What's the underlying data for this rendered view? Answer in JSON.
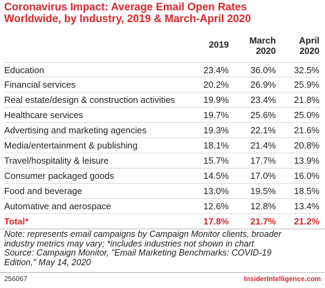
{
  "title": {
    "line1": "Coronavirus Impact: Average Email Open Rates",
    "line2": "Worldwide, by Industry, 2019 & March-April 2020"
  },
  "columns": [
    {
      "line1": "2019",
      "line2": ""
    },
    {
      "line1": "March",
      "line2": "2020"
    },
    {
      "line1": "April",
      "line2": "2020"
    }
  ],
  "rows": [
    {
      "label": "Education",
      "v2019": "23.4%",
      "march": "36.0%",
      "april": "32.5%"
    },
    {
      "label": "Financial services",
      "v2019": "20.2%",
      "march": "26.9%",
      "april": "25.9%"
    },
    {
      "label": "Real estate/design & construction activities",
      "v2019": "19.9%",
      "march": "23.4%",
      "april": "21.8%"
    },
    {
      "label": "Healthcare services",
      "v2019": "19.7%",
      "march": "25.6%",
      "april": "25.0%"
    },
    {
      "label": "Advertising and marketing agencies",
      "v2019": "19.3%",
      "march": "22.1%",
      "april": "21.6%"
    },
    {
      "label": "Media/entertainment & publishing",
      "v2019": "18.1%",
      "march": "21.4%",
      "april": "20.8%"
    },
    {
      "label": "Travel/hospitality & leisure",
      "v2019": "15.7%",
      "march": "17.7%",
      "april": "13.9%"
    },
    {
      "label": "Consumer packaged goods",
      "v2019": "14.5%",
      "march": "17.0%",
      "april": "16.0%"
    },
    {
      "label": "Food and beverage",
      "v2019": "13.0%",
      "march": "19.5%",
      "april": "18.5%"
    },
    {
      "label": "Automative and aerospace",
      "v2019": "12.6%",
      "march": "12.8%",
      "april": "13.4%"
    }
  ],
  "total": {
    "label": "Total*",
    "v2019": "17.8%",
    "march": "21.7%",
    "april": "21.2%"
  },
  "note": {
    "line1": "Note: represents email campaigns by Campaign Monitor clients, broader",
    "line2": "industry metrics may vary; *includes industries not shown in chart",
    "line3": "Source: Campaign Monitor, \"Email Marketing Benchmarks: COVID-19",
    "line4": "Edition,\" May 14, 2020"
  },
  "footer": {
    "id": "256067",
    "brand": "InsiderIntelligence.com"
  },
  "colors": {
    "accent": "#d9272e",
    "text": "#222222",
    "rule": "#dcdcdc"
  },
  "chart_data": {
    "type": "table",
    "title": "Coronavirus Impact: Average Email Open Rates Worldwide, by Industry, 2019 & March-April 2020",
    "columns": [
      "2019",
      "March 2020",
      "April 2020"
    ],
    "categories": [
      "Education",
      "Financial services",
      "Real estate/design & construction activities",
      "Healthcare services",
      "Advertising and marketing agencies",
      "Media/entertainment & publishing",
      "Travel/hospitality & leisure",
      "Consumer packaged goods",
      "Food and beverage",
      "Automative and aerospace",
      "Total*"
    ],
    "series": [
      {
        "name": "2019",
        "values": [
          23.4,
          20.2,
          19.9,
          19.7,
          19.3,
          18.1,
          15.7,
          14.5,
          13.0,
          12.6,
          17.8
        ]
      },
      {
        "name": "March 2020",
        "values": [
          36.0,
          26.9,
          23.4,
          25.6,
          22.1,
          21.4,
          17.7,
          17.0,
          19.5,
          12.8,
          21.7
        ]
      },
      {
        "name": "April 2020",
        "values": [
          32.5,
          25.9,
          21.8,
          25.0,
          21.6,
          20.8,
          13.9,
          16.0,
          18.5,
          13.4,
          21.2
        ]
      }
    ]
  }
}
